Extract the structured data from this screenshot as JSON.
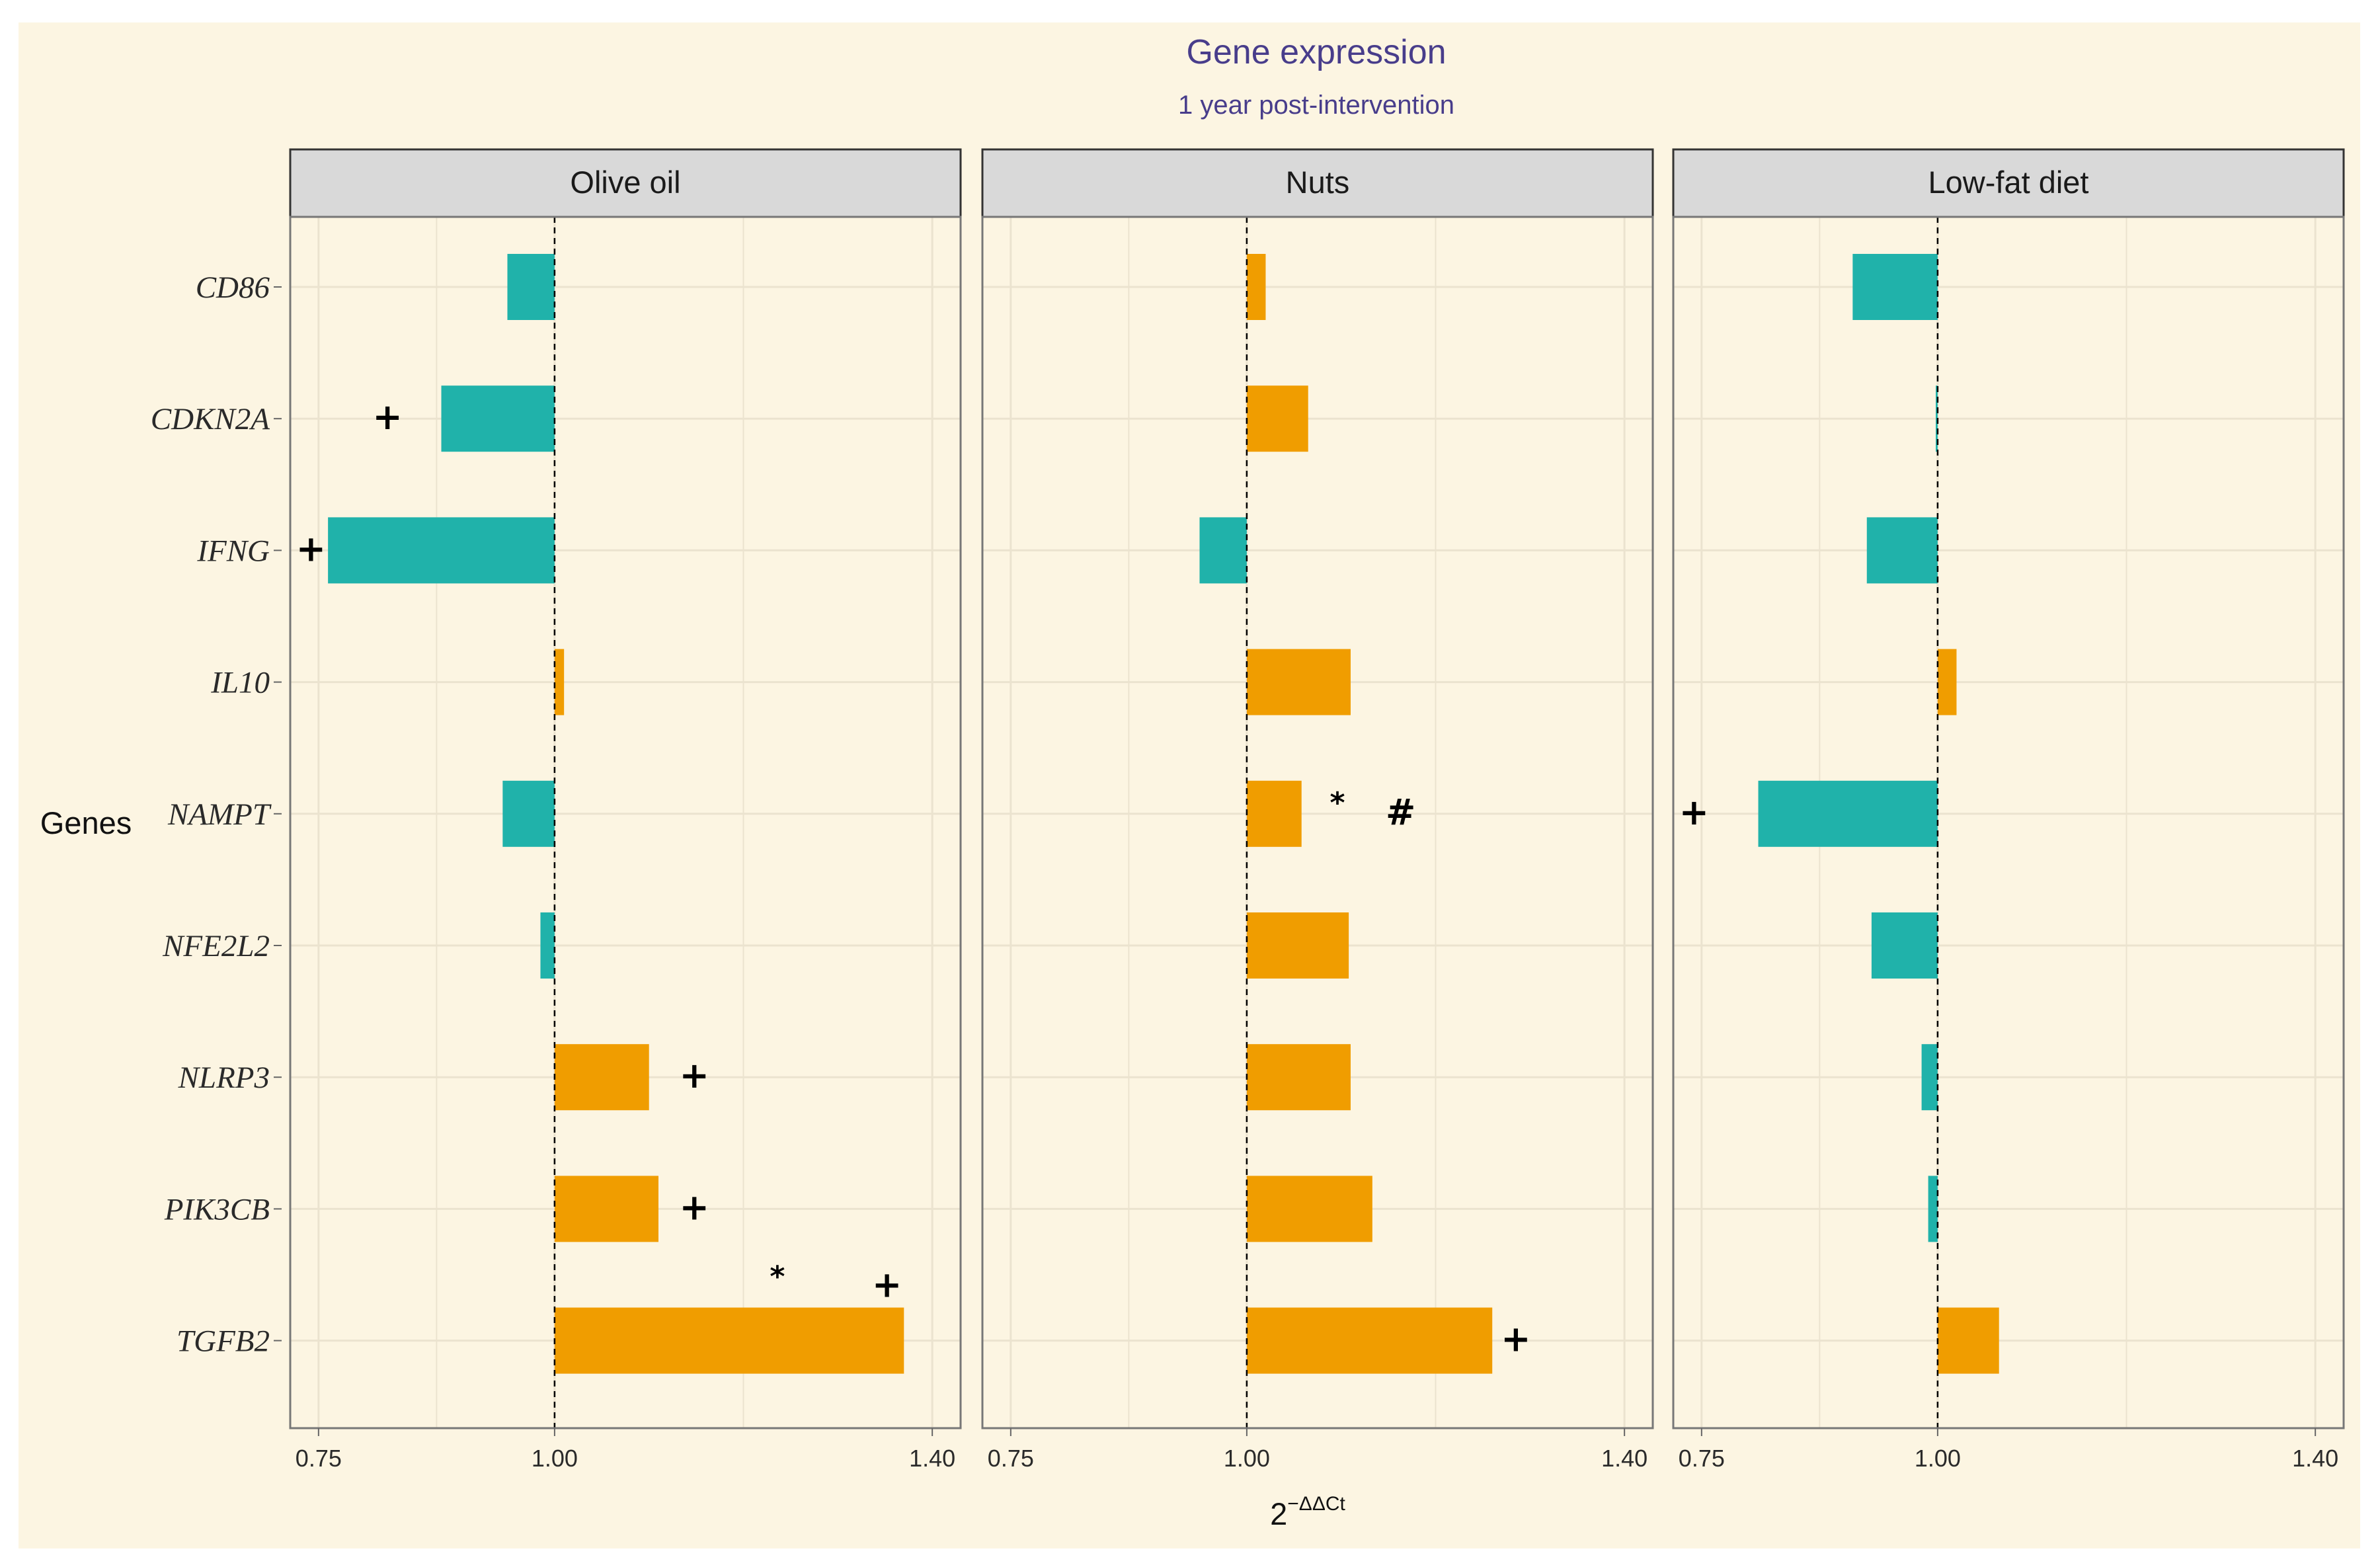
{
  "chart_data": {
    "type": "bar",
    "orientation": "horizontal",
    "title": "Gene expression",
    "subtitle": "1 year post-intervention",
    "ylabel": "Genes",
    "xlabel": "2",
    "xlabel_superscript": "−ΔΔCt",
    "xlim": [
      0.72,
      1.43
    ],
    "xticks": [
      0.75,
      1.0,
      1.4
    ],
    "xtick_labels": [
      "0.75",
      "1.00",
      "1.40"
    ],
    "baseline": 1.0,
    "categories": [
      "CD86",
      "CDKN2A",
      "IFNG",
      "IL10",
      "NAMPT",
      "NFE2L2",
      "NLRP3",
      "PIK3CB",
      "TGFB2"
    ],
    "colors": {
      "down": "#20b2aa",
      "up": "#f09d00"
    },
    "panels": [
      {
        "name": "Olive oil",
        "values": [
          0.95,
          0.88,
          0.76,
          1.01,
          0.945,
          0.985,
          1.1,
          1.11,
          1.37
        ],
        "annotations": [
          {
            "category": "CDKN2A",
            "value": 0.823,
            "text": "+"
          },
          {
            "category": "IFNG",
            "value": 0.742,
            "text": "+"
          },
          {
            "category": "NLRP3",
            "value": 1.148,
            "text": "+"
          },
          {
            "category": "PIK3CB",
            "value": 1.148,
            "text": "+"
          },
          {
            "category": "TGFB2",
            "value": 1.236,
            "text": "*"
          },
          {
            "category": "TGFB2",
            "value": 1.352,
            "text": "+"
          }
        ]
      },
      {
        "name": "Nuts",
        "values": [
          1.02,
          1.065,
          0.95,
          1.11,
          1.058,
          1.108,
          1.11,
          1.133,
          1.26
        ],
        "annotations": [
          {
            "category": "NAMPT",
            "value": 1.096,
            "text": "*"
          },
          {
            "category": "NAMPT",
            "value": 1.163,
            "text": "#"
          },
          {
            "category": "TGFB2",
            "value": 1.285,
            "text": "+"
          }
        ]
      },
      {
        "name": "Low-fat diet",
        "values": [
          0.91,
          0.998,
          0.925,
          1.02,
          0.81,
          0.93,
          0.983,
          0.99,
          1.065
        ],
        "annotations": [
          {
            "category": "NAMPT",
            "value": 0.742,
            "text": "+"
          }
        ]
      }
    ]
  }
}
